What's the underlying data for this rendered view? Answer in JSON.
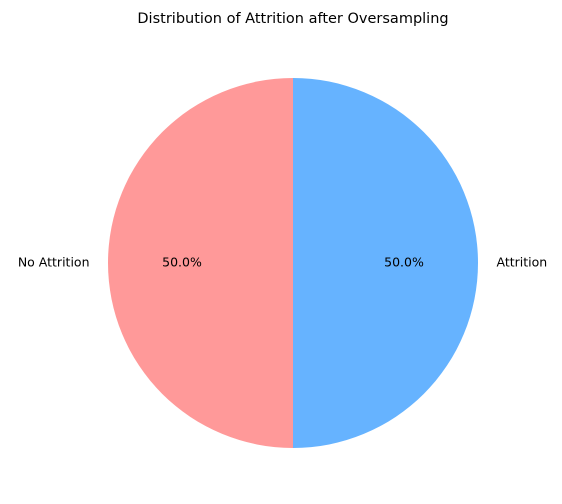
{
  "chart_data": {
    "type": "pie",
    "title": "Distribution of Attrition after Oversampling",
    "categories": [
      "No Attrition",
      "Attrition"
    ],
    "values": [
      50.0,
      50.0
    ],
    "percent_labels": [
      "50.0%",
      "50.0%"
    ],
    "colors": [
      "#ff9999",
      "#66b3ff"
    ],
    "start_angle_deg": 90,
    "direction": "counterclockwise",
    "legend": "none"
  }
}
